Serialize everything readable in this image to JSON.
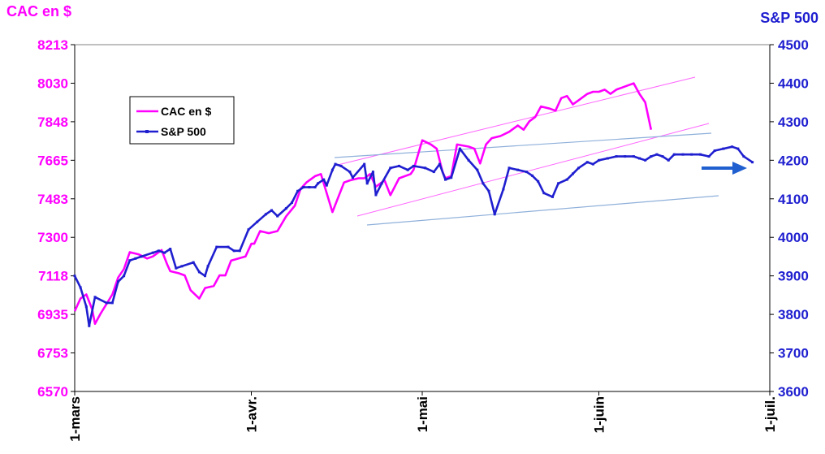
{
  "colors": {
    "cac": "#ff00ff",
    "sp": "#1f1fd0",
    "trend_cac": "#ff55ff",
    "trend_sp": "#7fa6d6",
    "arrow": "#1f5fcf"
  },
  "header": {
    "left_axis_title": "CAC en $",
    "right_axis_title": "S&P 500"
  },
  "chart_data": {
    "type": "line",
    "y_left": {
      "label": "CAC en $",
      "range": [
        6570,
        8213
      ],
      "ticks": [
        "8213",
        "8030",
        "7848",
        "7665",
        "7483",
        "7300",
        "7118",
        "6935",
        "6753",
        "6570"
      ]
    },
    "y_right": {
      "label": "S&P 500",
      "range": [
        3600,
        4500
      ],
      "ticks": [
        "4500",
        "4400",
        "4300",
        "4200",
        "4100",
        "4000",
        "3900",
        "3800",
        "3700",
        "3600"
      ]
    },
    "x_ticks": [
      "1-mars",
      "1-avr.",
      "1-mai",
      "1-juin",
      "1-juil."
    ],
    "x_range_days": [
      0,
      122
    ],
    "legend": {
      "placement": "top-left",
      "entries": [
        "CAC en $",
        "S&P 500"
      ]
    },
    "series": [
      {
        "name": "CAC en $",
        "axis": "left",
        "points": [
          [
            0,
            6950
          ],
          [
            2,
            7010
          ],
          [
            4,
            7030
          ],
          [
            6,
            6960
          ],
          [
            7,
            6890
          ],
          [
            9,
            6940
          ],
          [
            13,
            7030
          ],
          [
            15,
            7110
          ],
          [
            17,
            7150
          ],
          [
            19,
            7230
          ],
          [
            22,
            7220
          ],
          [
            25,
            7200
          ],
          [
            27,
            7210
          ],
          [
            30,
            7240
          ],
          [
            32,
            7170
          ],
          [
            33,
            7140
          ],
          [
            36,
            7130
          ],
          [
            38,
            7120
          ],
          [
            40,
            7050
          ],
          [
            43,
            7010
          ],
          [
            45,
            7060
          ],
          [
            48,
            7070
          ],
          [
            50,
            7120
          ],
          [
            52,
            7120
          ],
          [
            54,
            7190
          ],
          [
            59,
            7210
          ],
          [
            61,
            7270
          ],
          [
            62,
            7270
          ],
          [
            64,
            7330
          ],
          [
            67,
            7320
          ],
          [
            70,
            7330
          ],
          [
            73,
            7400
          ],
          [
            76,
            7450
          ],
          [
            78,
            7530
          ],
          [
            80,
            7560
          ],
          [
            83,
            7590
          ],
          [
            85,
            7600
          ],
          [
            89,
            7420
          ],
          [
            93,
            7560
          ],
          [
            95,
            7570
          ],
          [
            98,
            7580
          ],
          [
            100,
            7580
          ],
          [
            102,
            7600
          ],
          [
            104,
            7540
          ],
          [
            107,
            7570
          ],
          [
            109,
            7500
          ],
          [
            112,
            7580
          ],
          [
            116,
            7600
          ],
          [
            117,
            7620
          ],
          [
            120,
            7760
          ],
          [
            123,
            7740
          ],
          [
            125,
            7720
          ],
          [
            127,
            7610
          ],
          [
            128,
            7580
          ],
          [
            130,
            7590
          ],
          [
            132,
            7740
          ],
          [
            136,
            7730
          ],
          [
            138,
            7720
          ],
          [
            140,
            7650
          ],
          [
            142,
            7740
          ],
          [
            144,
            7770
          ],
          [
            147,
            7780
          ],
          [
            150,
            7800
          ],
          [
            153,
            7830
          ],
          [
            155,
            7810
          ],
          [
            157,
            7850
          ],
          [
            159,
            7870
          ],
          [
            161,
            7920
          ],
          [
            164,
            7910
          ],
          [
            166,
            7900
          ],
          [
            168,
            7960
          ],
          [
            170,
            7970
          ],
          [
            172,
            7930
          ],
          [
            174,
            7950
          ],
          [
            177,
            7980
          ],
          [
            179,
            7990
          ],
          [
            181,
            7990
          ],
          [
            183,
            8000
          ],
          [
            185,
            7980
          ],
          [
            187,
            8000
          ],
          [
            189,
            8010
          ],
          [
            191,
            8020
          ],
          [
            193,
            8030
          ],
          [
            195,
            7980
          ],
          [
            197,
            7940
          ],
          [
            199,
            7810
          ]
        ]
      },
      {
        "name": "S&P 500",
        "axis": "right",
        "points": [
          [
            0,
            3900
          ],
          [
            2,
            3870
          ],
          [
            4,
            3820
          ],
          [
            5,
            3770
          ],
          [
            7,
            3845
          ],
          [
            11,
            3830
          ],
          [
            13,
            3830
          ],
          [
            15,
            3885
          ],
          [
            17,
            3900
          ],
          [
            19,
            3940
          ],
          [
            21,
            3945
          ],
          [
            23,
            3950
          ],
          [
            27,
            3960
          ],
          [
            29,
            3965
          ],
          [
            31,
            3960
          ],
          [
            33,
            3970
          ],
          [
            35,
            3920
          ],
          [
            37,
            3925
          ],
          [
            41,
            3935
          ],
          [
            43,
            3910
          ],
          [
            45,
            3900
          ],
          [
            46,
            3925
          ],
          [
            49,
            3975
          ],
          [
            53,
            3975
          ],
          [
            55,
            3965
          ],
          [
            57,
            3965
          ],
          [
            60,
            4020
          ],
          [
            63,
            4040
          ],
          [
            66,
            4060
          ],
          [
            68,
            4070
          ],
          [
            70,
            4055
          ],
          [
            73,
            4075
          ],
          [
            75,
            4090
          ],
          [
            77,
            4120
          ],
          [
            79,
            4130
          ],
          [
            81,
            4130
          ],
          [
            83,
            4130
          ],
          [
            84,
            4140
          ],
          [
            86,
            4150
          ],
          [
            87,
            4135
          ],
          [
            89,
            4175
          ],
          [
            90,
            4190
          ],
          [
            92,
            4185
          ],
          [
            95,
            4170
          ],
          [
            96,
            4155
          ],
          [
            100,
            4190
          ],
          [
            101,
            4140
          ],
          [
            103,
            4170
          ],
          [
            104,
            4110
          ],
          [
            106,
            4140
          ],
          [
            109,
            4180
          ],
          [
            112,
            4185
          ],
          [
            115,
            4175
          ],
          [
            117,
            4185
          ],
          [
            121,
            4180
          ],
          [
            124,
            4170
          ],
          [
            126,
            4190
          ],
          [
            128,
            4150
          ],
          [
            130,
            4155
          ],
          [
            133,
            4230
          ],
          [
            136,
            4200
          ],
          [
            139,
            4175
          ],
          [
            141,
            4140
          ],
          [
            143,
            4120
          ],
          [
            145,
            4060
          ],
          [
            148,
            4125
          ],
          [
            150,
            4180
          ],
          [
            153,
            4175
          ],
          [
            156,
            4170
          ],
          [
            158,
            4160
          ],
          [
            160,
            4145
          ],
          [
            162,
            4115
          ],
          [
            165,
            4105
          ],
          [
            167,
            4140
          ],
          [
            170,
            4150
          ],
          [
            172,
            4165
          ],
          [
            174,
            4180
          ],
          [
            177,
            4195
          ],
          [
            179,
            4190
          ],
          [
            181,
            4200
          ],
          [
            184,
            4205
          ],
          [
            187,
            4210
          ],
          [
            190,
            4210
          ],
          [
            193,
            4210
          ],
          [
            195,
            4205
          ],
          [
            197,
            4200
          ],
          [
            199,
            4210
          ],
          [
            201,
            4215
          ],
          [
            203,
            4210
          ],
          [
            205,
            4200
          ],
          [
            207,
            4215
          ],
          [
            210,
            4215
          ],
          [
            213,
            4215
          ],
          [
            216,
            4215
          ],
          [
            219,
            4210
          ],
          [
            221,
            4225
          ],
          [
            224,
            4230
          ],
          [
            227,
            4235
          ],
          [
            229,
            4230
          ],
          [
            231,
            4210
          ],
          [
            234,
            4195
          ]
        ]
      }
    ]
  }
}
